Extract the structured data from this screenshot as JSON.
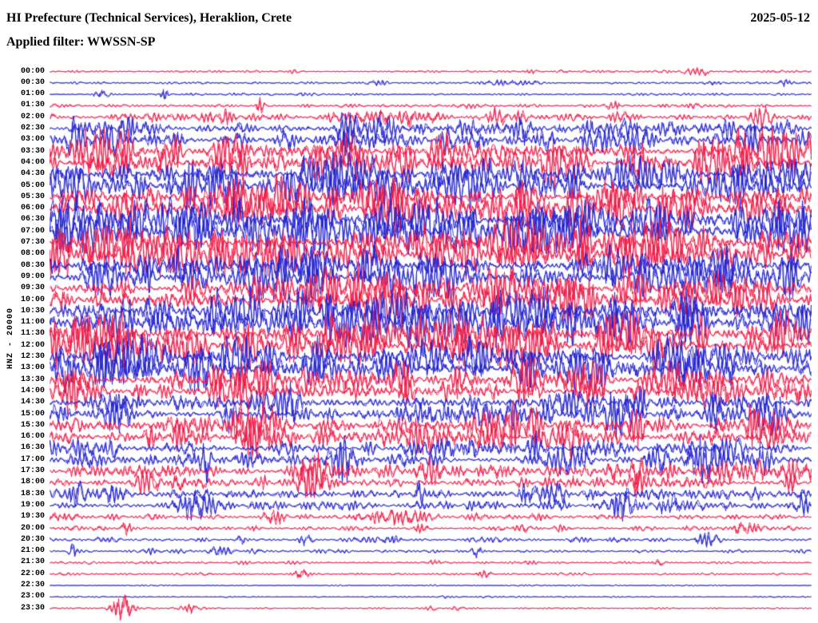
{
  "header": {
    "station_title": "HI Prefecture (Technical Services), Heraklion, Crete",
    "date": "2025-05-12",
    "filter_label": "Applied filter: WWSSN-SP"
  },
  "axis": {
    "left_label": "HNZ - 20000"
  },
  "chart_data": {
    "type": "line",
    "subtype": "helicorder-seismogram",
    "title": "24-hour helicorder seismogram, one trace per 30 minutes",
    "station_channel": "HNZ",
    "scale": "20000",
    "date": "2025-05-12",
    "filter": "WWSSN-SP",
    "minutes_per_row": 30,
    "time_range": [
      "00:00",
      "24:00"
    ],
    "legend": "off",
    "grid": "off",
    "colors": {
      "red": "#f01945",
      "blue": "#2020d0"
    },
    "rows": [
      {
        "time": "00:00",
        "color": "red",
        "activity": 0.09,
        "events": [
          {
            "pos": 0.32,
            "amp": 3,
            "w": 8
          },
          {
            "pos": 0.63,
            "amp": 2.5,
            "w": 6
          },
          {
            "pos": 0.86,
            "amp": 2.5,
            "w": 6
          }
        ]
      },
      {
        "time": "00:30",
        "color": "blue",
        "activity": 0.1,
        "events": [
          {
            "pos": 0.965,
            "amp": 5,
            "w": 8
          }
        ]
      },
      {
        "time": "01:00",
        "color": "blue",
        "activity": 0.09,
        "events": [
          {
            "pos": 0.15,
            "amp": 9,
            "w": 4
          }
        ]
      },
      {
        "time": "01:30",
        "color": "red",
        "activity": 0.13,
        "events": [
          {
            "pos": 0.275,
            "amp": 10,
            "w": 5
          }
        ]
      },
      {
        "time": "02:00",
        "color": "red",
        "activity": 0.3,
        "events": [
          {
            "pos": 0.74,
            "amp": 7,
            "w": 6
          }
        ]
      },
      {
        "time": "02:30",
        "color": "blue",
        "activity": 0.45,
        "events": []
      },
      {
        "time": "03:00",
        "color": "blue",
        "activity": 0.52,
        "events": [
          {
            "pos": 0.42,
            "amp": 9,
            "w": 8
          }
        ]
      },
      {
        "time": "03:30",
        "color": "red",
        "activity": 0.58,
        "events": [
          {
            "pos": 0.4,
            "amp": 9,
            "w": 8
          }
        ]
      },
      {
        "time": "04:00",
        "color": "red",
        "activity": 0.68,
        "events": []
      },
      {
        "time": "04:30",
        "color": "blue",
        "activity": 0.62,
        "events": []
      },
      {
        "time": "05:00",
        "color": "blue",
        "activity": 0.75,
        "events": [
          {
            "pos": 0.4,
            "amp": 10,
            "w": 9
          }
        ]
      },
      {
        "time": "05:30",
        "color": "red",
        "activity": 0.78,
        "events": []
      },
      {
        "time": "06:00",
        "color": "red",
        "activity": 0.82,
        "events": []
      },
      {
        "time": "06:30",
        "color": "blue",
        "activity": 0.78,
        "events": [
          {
            "pos": 0.12,
            "amp": 10,
            "w": 8
          }
        ]
      },
      {
        "time": "07:00",
        "color": "blue",
        "activity": 0.82,
        "events": [
          {
            "pos": 0.95,
            "amp": 11,
            "w": 8
          }
        ]
      },
      {
        "time": "07:30",
        "color": "red",
        "activity": 0.78,
        "events": []
      },
      {
        "time": "08:00",
        "color": "red",
        "activity": 0.8,
        "events": []
      },
      {
        "time": "08:30",
        "color": "blue",
        "activity": 0.74,
        "events": []
      },
      {
        "time": "09:00",
        "color": "blue",
        "activity": 0.78,
        "events": [
          {
            "pos": 0.08,
            "amp": 11,
            "w": 8
          }
        ]
      },
      {
        "time": "09:30",
        "color": "red",
        "activity": 0.74,
        "events": [
          {
            "pos": 0.1,
            "amp": 10,
            "w": 8
          }
        ]
      },
      {
        "time": "10:00",
        "color": "red",
        "activity": 0.78,
        "events": []
      },
      {
        "time": "10:30",
        "color": "blue",
        "activity": 0.72,
        "events": []
      },
      {
        "time": "11:00",
        "color": "blue",
        "activity": 0.76,
        "events": [
          {
            "pos": 0.09,
            "amp": 10,
            "w": 7
          }
        ]
      },
      {
        "time": "11:30",
        "color": "red",
        "activity": 0.72,
        "events": []
      },
      {
        "time": "12:00",
        "color": "red",
        "activity": 0.7,
        "events": []
      },
      {
        "time": "12:30",
        "color": "blue",
        "activity": 0.68,
        "events": []
      },
      {
        "time": "13:00",
        "color": "blue",
        "activity": 0.68,
        "events": []
      },
      {
        "time": "13:30",
        "color": "red",
        "activity": 0.64,
        "events": [
          {
            "pos": 0.33,
            "amp": 9,
            "w": 8
          }
        ]
      },
      {
        "time": "14:00",
        "color": "red",
        "activity": 0.6,
        "events": [
          {
            "pos": 0.4,
            "amp": 9,
            "w": 7
          }
        ]
      },
      {
        "time": "14:30",
        "color": "blue",
        "activity": 0.56,
        "events": []
      },
      {
        "time": "15:00",
        "color": "blue",
        "activity": 0.58,
        "events": [
          {
            "pos": 0.24,
            "amp": 9,
            "w": 6
          }
        ]
      },
      {
        "time": "15:30",
        "color": "red",
        "activity": 0.54,
        "events": [
          {
            "pos": 0.88,
            "amp": 9,
            "w": 6
          }
        ]
      },
      {
        "time": "16:00",
        "color": "red",
        "activity": 0.54,
        "events": [
          {
            "pos": 0.13,
            "amp": 9,
            "w": 7
          }
        ]
      },
      {
        "time": "16:30",
        "color": "blue",
        "activity": 0.5,
        "events": []
      },
      {
        "time": "17:00",
        "color": "blue",
        "activity": 0.48,
        "events": []
      },
      {
        "time": "17:30",
        "color": "red",
        "activity": 0.44,
        "events": [
          {
            "pos": 0.93,
            "amp": 9,
            "w": 6
          }
        ]
      },
      {
        "time": "18:00",
        "color": "red",
        "activity": 0.4,
        "events": [
          {
            "pos": 0.28,
            "amp": 8,
            "w": 6
          }
        ]
      },
      {
        "time": "18:30",
        "color": "blue",
        "activity": 0.36,
        "events": []
      },
      {
        "time": "19:00",
        "color": "blue",
        "activity": 0.34,
        "events": [
          {
            "pos": 0.82,
            "amp": 10,
            "w": 5
          }
        ]
      },
      {
        "time": "19:30",
        "color": "red",
        "activity": 0.28,
        "events": [
          {
            "pos": 0.43,
            "amp": 7,
            "w": 8
          }
        ]
      },
      {
        "time": "20:00",
        "color": "red",
        "activity": 0.18,
        "events": [
          {
            "pos": 0.1,
            "amp": 7,
            "w": 6
          },
          {
            "pos": 0.62,
            "amp": 6,
            "w": 8
          }
        ]
      },
      {
        "time": "20:30",
        "color": "blue",
        "activity": 0.18,
        "events": [
          {
            "pos": 0.25,
            "amp": 6,
            "w": 6
          },
          {
            "pos": 0.86,
            "amp": 7,
            "w": 6
          }
        ]
      },
      {
        "time": "21:00",
        "color": "blue",
        "activity": 0.13,
        "events": [
          {
            "pos": 0.03,
            "amp": 9,
            "w": 5
          },
          {
            "pos": 0.56,
            "amp": 7,
            "w": 6
          }
        ]
      },
      {
        "time": "21:30",
        "color": "red",
        "activity": 0.1,
        "events": [
          {
            "pos": 0.8,
            "amp": 4,
            "w": 8
          }
        ]
      },
      {
        "time": "22:00",
        "color": "red",
        "activity": 0.09,
        "events": [
          {
            "pos": 0.33,
            "amp": 6,
            "w": 9
          },
          {
            "pos": 0.57,
            "amp": 5,
            "w": 8
          }
        ]
      },
      {
        "time": "22:30",
        "color": "blue",
        "activity": 0.05,
        "events": []
      },
      {
        "time": "23:00",
        "color": "blue",
        "activity": 0.045,
        "events": [
          {
            "pos": 0.52,
            "amp": 2,
            "w": 8
          }
        ]
      },
      {
        "time": "23:30",
        "color": "red",
        "activity": 0.07,
        "events": [
          {
            "pos": 0.095,
            "amp": 16,
            "w": 14
          },
          {
            "pos": 0.185,
            "amp": 5,
            "w": 6
          },
          {
            "pos": 0.5,
            "amp": 2.5,
            "w": 8
          }
        ]
      }
    ]
  }
}
